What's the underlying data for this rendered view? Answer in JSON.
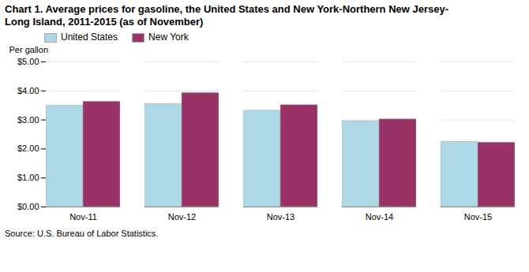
{
  "chart_data": {
    "type": "bar",
    "title": "Chart 1. Average prices for gasoline, the United States and New York-Northern New Jersey-",
    "subtitle": "Long Island, 2011-2015 (as of November)",
    "ylabel": "Per gallon",
    "source": "Source: U.S. Bureau of Labor Statistics.",
    "categories": [
      "Nov-11",
      "Nov-12",
      "Nov-13",
      "Nov-14",
      "Nov-15"
    ],
    "series": [
      {
        "name": "United States",
        "color": "#add8e6",
        "values": [
          3.49,
          3.55,
          3.32,
          2.96,
          2.25
        ]
      },
      {
        "name": "New York",
        "color": "#993366",
        "values": [
          3.63,
          3.93,
          3.51,
          3.02,
          2.22
        ]
      }
    ],
    "ylim": [
      0,
      5.0
    ],
    "yticks": [
      {
        "value": 0.0,
        "label": "$0.00"
      },
      {
        "value": 1.0,
        "label": "$1.00"
      },
      {
        "value": 2.0,
        "label": "$2.00"
      },
      {
        "value": 3.0,
        "label": "$3.00"
      },
      {
        "value": 4.0,
        "label": "$4.00"
      },
      {
        "value": 5.0,
        "label": "$5.00"
      }
    ],
    "grid": true,
    "legend": "upper left"
  }
}
